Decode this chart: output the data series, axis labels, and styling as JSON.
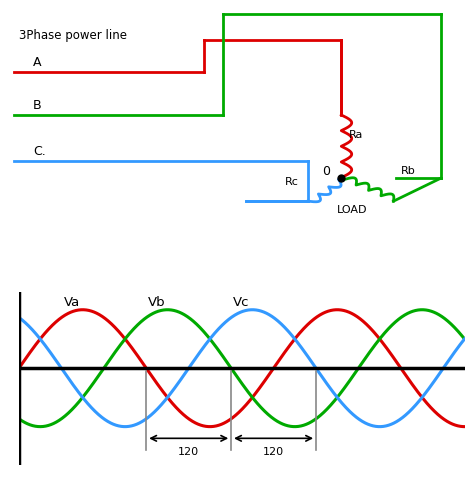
{
  "bg_color": "#ffffff",
  "title": "3Phase power line",
  "cA": "#dd0000",
  "cB": "#00aa00",
  "cC": "#3399ff",
  "black": "#000000",
  "gray": "#888888",
  "Va_label": "Va",
  "Vb_label": "Vb",
  "Vc_label": "Vc",
  "A_label": "A",
  "B_label": "B",
  "C_label": "C.",
  "Ra_label": "Ra",
  "Rb_label": "Rb",
  "Rc_label": "Rc",
  "neutral_label": "0",
  "load_label": "LOAD",
  "deg120_label": "120"
}
